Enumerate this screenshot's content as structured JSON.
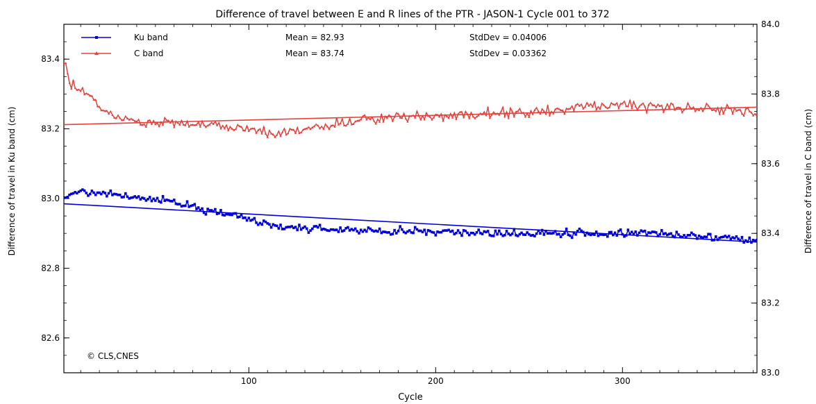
{
  "chart_data": {
    "type": "line",
    "title": "Difference of travel between E and R lines of the PTR - JASON-1 Cycle 001 to 372",
    "xlabel": "Cycle",
    "ylabel_left": "Difference of travel in Ku band (cm)",
    "ylabel_right": "Difference of travel in C band (cm)",
    "xlim": [
      1,
      372
    ],
    "ylim_left": [
      82.5,
      83.5
    ],
    "ylim_right": [
      83.0,
      84.0
    ],
    "xticks": [
      100,
      200,
      300
    ],
    "yticks_left": [
      "82.6",
      "82.8",
      "83.0",
      "83.2",
      "83.4"
    ],
    "yticks_right": [
      "83.0",
      "83.2",
      "83.4",
      "83.6",
      "83.8",
      "84.0"
    ],
    "grid": false,
    "legend_position": "top-left",
    "annotation": "© CLS,CNES",
    "series": [
      {
        "name": "Ku band",
        "axis": "left",
        "color": "#0000dd",
        "mean_label": "Mean = 82.93",
        "std_label": "StdDev = 0.04006",
        "trend": [
          [
            1,
            82.985
          ],
          [
            372,
            82.875
          ]
        ],
        "profile": [
          [
            1,
            83.01
          ],
          [
            10,
            83.02
          ],
          [
            30,
            83.01
          ],
          [
            45,
            83.0
          ],
          [
            60,
            82.99
          ],
          [
            75,
            82.97
          ],
          [
            90,
            82.955
          ],
          [
            105,
            82.93
          ],
          [
            125,
            82.915
          ],
          [
            150,
            82.91
          ],
          [
            175,
            82.905
          ],
          [
            200,
            82.905
          ],
          [
            250,
            82.9
          ],
          [
            300,
            82.9
          ],
          [
            340,
            82.895
          ],
          [
            372,
            82.88
          ]
        ],
        "noise": 0.01,
        "marker": "square"
      },
      {
        "name": "C band",
        "axis": "right",
        "color": "#e8403a",
        "mean_label": "Mean = 83.74",
        "std_label": "StdDev = 0.03362",
        "trend": [
          [
            1,
            83.712
          ],
          [
            372,
            83.762
          ]
        ],
        "profile": [
          [
            1,
            83.9
          ],
          [
            4,
            83.83
          ],
          [
            10,
            83.81
          ],
          [
            18,
            83.78
          ],
          [
            25,
            83.74
          ],
          [
            40,
            83.72
          ],
          [
            60,
            83.715
          ],
          [
            80,
            83.71
          ],
          [
            100,
            83.7
          ],
          [
            115,
            83.685
          ],
          [
            130,
            83.7
          ],
          [
            160,
            83.725
          ],
          [
            190,
            83.735
          ],
          [
            220,
            83.74
          ],
          [
            260,
            83.75
          ],
          [
            300,
            83.77
          ],
          [
            340,
            83.76
          ],
          [
            372,
            83.75
          ]
        ],
        "noise": 0.014,
        "marker": "triangle"
      }
    ]
  }
}
